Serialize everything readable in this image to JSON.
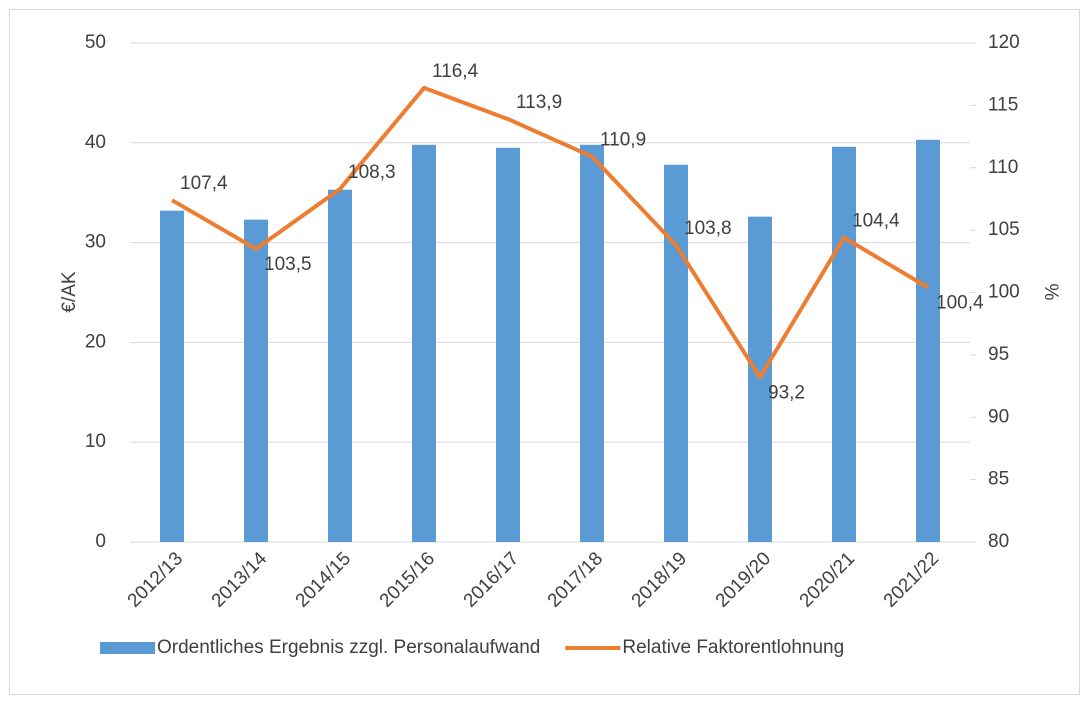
{
  "chart_data": {
    "type": "bar-line",
    "categories": [
      "2012/13",
      "2013/14",
      "2014/15",
      "2015/16",
      "2016/17",
      "2017/18",
      "2018/19",
      "2019/20",
      "2020/21",
      "2021/22"
    ],
    "series": [
      {
        "name": "Ordentliches Ergebnis zzgl. Personalaufwand",
        "type": "bar",
        "color": "#5b9bd5",
        "values": [
          33.2,
          32.3,
          35.3,
          39.8,
          39.5,
          39.8,
          37.8,
          32.6,
          39.6,
          40.3
        ]
      },
      {
        "name": "Relative Faktorentlohnung",
        "type": "line",
        "axis": "y2",
        "color": "#ed7d31",
        "values": [
          107.4,
          103.5,
          108.3,
          116.4,
          113.9,
          110.9,
          103.8,
          93.2,
          104.4,
          100.4
        ],
        "value_labels": [
          "107,4",
          "103,5",
          "108,3",
          "116,4",
          "113,9",
          "110,9",
          "103,8",
          "93,2",
          "104,4",
          "100,4"
        ]
      }
    ],
    "y_label": "€/AK",
    "y2_label": "%",
    "ylim": [
      0,
      50
    ],
    "yticks": [
      0,
      10,
      20,
      30,
      40,
      50
    ],
    "y2lim": [
      80,
      120
    ],
    "y2ticks": [
      80,
      85,
      90,
      95,
      100,
      105,
      110,
      115,
      120
    ],
    "grid": true,
    "legend": "bottom"
  }
}
